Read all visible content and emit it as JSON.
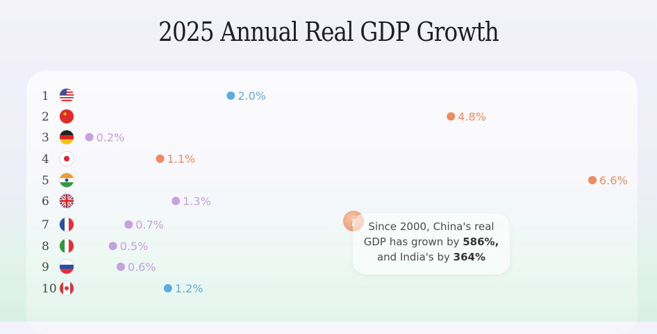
{
  "chart_data": {
    "type": "bar",
    "orientation": "horizontal",
    "title": "2025 Annual Real GDP Growth",
    "categories": [
      "1",
      "2",
      "3",
      "4",
      "5",
      "6",
      "7",
      "8",
      "9",
      "10"
    ],
    "countries": [
      "United States",
      "China",
      "Germany",
      "Japan",
      "India",
      "United Kingdom",
      "France",
      "Italy",
      "Russia",
      "Canada"
    ],
    "values": [
      2.0,
      4.8,
      0.2,
      1.1,
      6.6,
      1.3,
      0.7,
      0.5,
      0.6,
      1.2
    ],
    "labels": [
      "2.0%",
      "4.8%",
      "0.2%",
      "1.1%",
      "6.6%",
      "1.3%",
      "0.7%",
      "0.5%",
      "0.6%",
      "1.2%"
    ],
    "colors": [
      "#5aaee0",
      "#f08a60",
      "#c6a2dc",
      "#f08a60",
      "#f08a60",
      "#c6a2dc",
      "#c6a2dc",
      "#c6a2dc",
      "#c6a2dc",
      "#5aaee0"
    ],
    "xlim": [
      0,
      6.6
    ],
    "grid": false
  },
  "note": {
    "icon": "info-icon",
    "line1": "Since 2000, China's real",
    "line2a": "GDP has grown by ",
    "line2b": "586%,",
    "line3a": "and India's by ",
    "line3b": "364%"
  }
}
